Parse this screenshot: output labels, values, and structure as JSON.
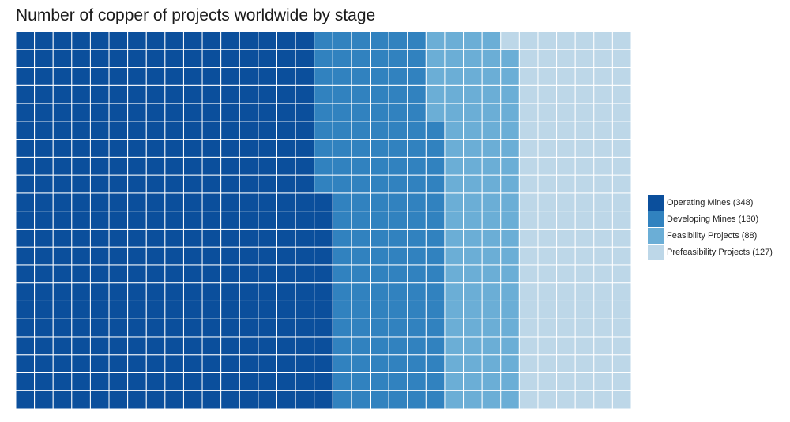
{
  "chart_data": {
    "type": "waffle",
    "title": "Number of copper of projects worldwide by stage",
    "series": [
      {
        "name": "Operating Mines",
        "value": 348,
        "color": "#0b4f9c",
        "legend_label": "Operating Mines (348)"
      },
      {
        "name": "Developing Mines",
        "value": 130,
        "color": "#3182bf",
        "legend_label": "Developing Mines (130)"
      },
      {
        "name": "Feasibility Projects",
        "value": 88,
        "color": "#6baed6",
        "legend_label": "Feasibility Projects (88)"
      },
      {
        "name": "Prefeasibility Projects",
        "value": 127,
        "color": "#bdd7e8",
        "legend_label": "Prefeasibility Projects (127)"
      }
    ],
    "grid_rows": 21,
    "fill_order": "column-major-bottom-to-top",
    "legend_position": "right"
  }
}
